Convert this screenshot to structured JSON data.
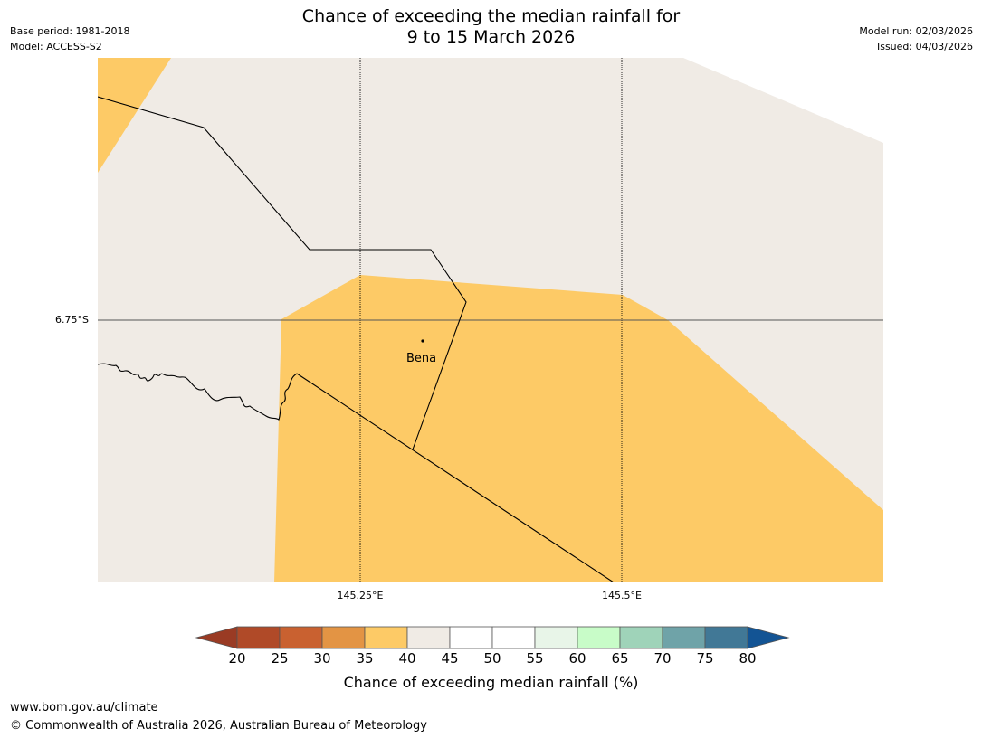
{
  "header": {
    "title_line1": "Chance of exceeding the median rainfall for",
    "title_line2": "9 to 15 March 2026",
    "base_period": "Base period: 1981-2018",
    "model": "Model: ACCESS-S2",
    "model_run": "Model run: 02/03/2026",
    "issued": "Issued: 04/03/2026"
  },
  "map": {
    "latitude_label": "6.75°S",
    "longitude_labels": [
      "145.25°E",
      "145.5°E"
    ],
    "place": {
      "name": "Bena"
    },
    "colors": {
      "category_35_40": "#fdca66",
      "category_40_45": "#f0ebe5",
      "boundary": "#000000",
      "graticule": "#000000"
    }
  },
  "colorbar": {
    "ticks": [
      "20",
      "25",
      "30",
      "35",
      "40",
      "45",
      "50",
      "55",
      "60",
      "65",
      "70",
      "75",
      "80"
    ],
    "colors": [
      "#9a3b24",
      "#b04a28",
      "#c96130",
      "#e39444",
      "#fdca66",
      "#f0ebe5",
      "#ffffff",
      "#ffffff",
      "#e8f5e8",
      "#c8fcc8",
      "#9fd3b9",
      "#6fa3a8",
      "#417896",
      "#135494"
    ],
    "label": "Chance of exceeding median rainfall (%)"
  },
  "footer": {
    "url": "www.bom.gov.au/climate",
    "copyright": "© Commonwealth of Australia 2026, Australian Bureau of Meteorology"
  }
}
